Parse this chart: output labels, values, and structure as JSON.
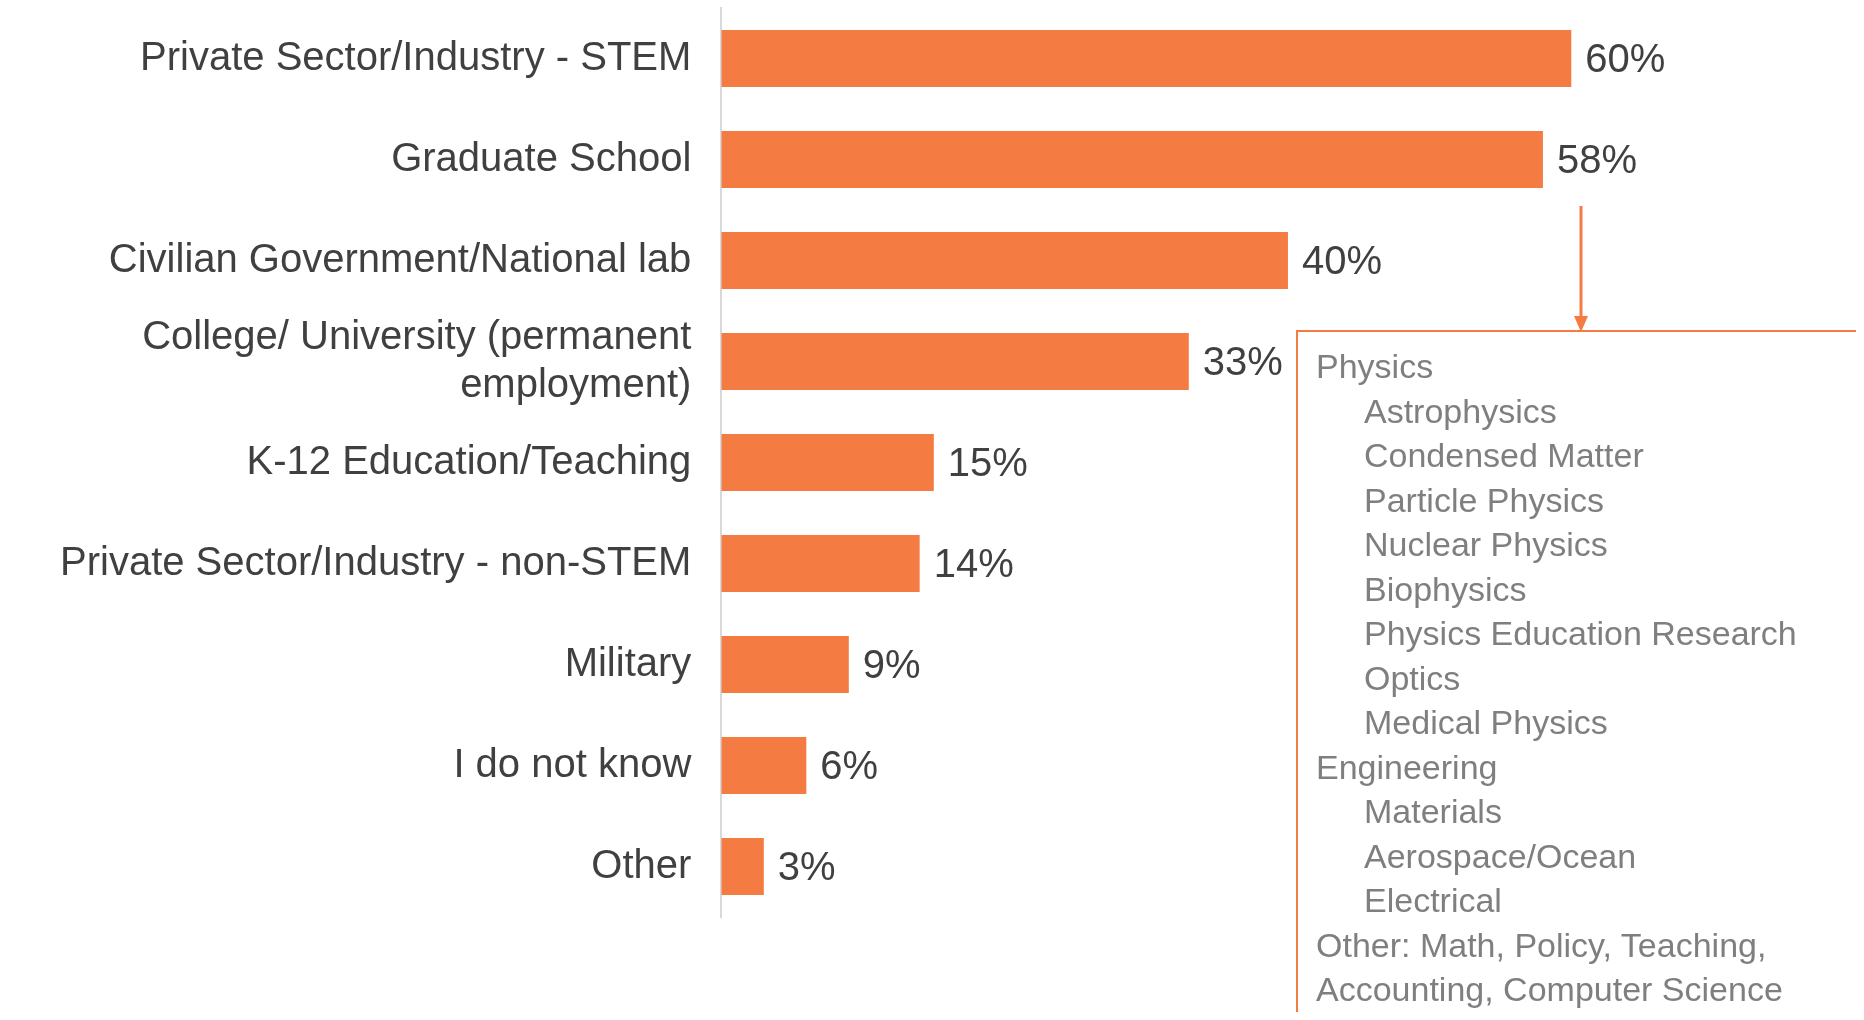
{
  "chart_data": {
    "type": "bar",
    "orientation": "horizontal",
    "categories": [
      "Private Sector/Industry - STEM",
      "Graduate School",
      "Civilian Government/National lab",
      "College/ University (permanent employment)",
      "K-12 Education/Teaching",
      "Private Sector/Industry - non-STEM",
      "Military",
      "I do not know",
      "Other"
    ],
    "values": [
      60,
      58,
      40,
      33,
      15,
      14,
      9,
      6,
      3
    ],
    "value_labels": [
      "60%",
      "58%",
      "40%",
      "33%",
      "15%",
      "14%",
      "9%",
      "6%",
      "3%"
    ],
    "color": "#f47b42",
    "annotations": [
      "Physics",
      "    Astrophysics",
      "    Condensed Matter",
      "    Particle Physics",
      "    Nuclear Physics",
      "    Biophysics",
      "    Physics Education Research",
      "    Optics",
      "    Medical Physics",
      "Engineering",
      "    Materials",
      "    Aerospace/Ocean",
      "    Electrical",
      "Other: Math, Policy, Teaching, Accounting, Computer Science"
    ]
  }
}
